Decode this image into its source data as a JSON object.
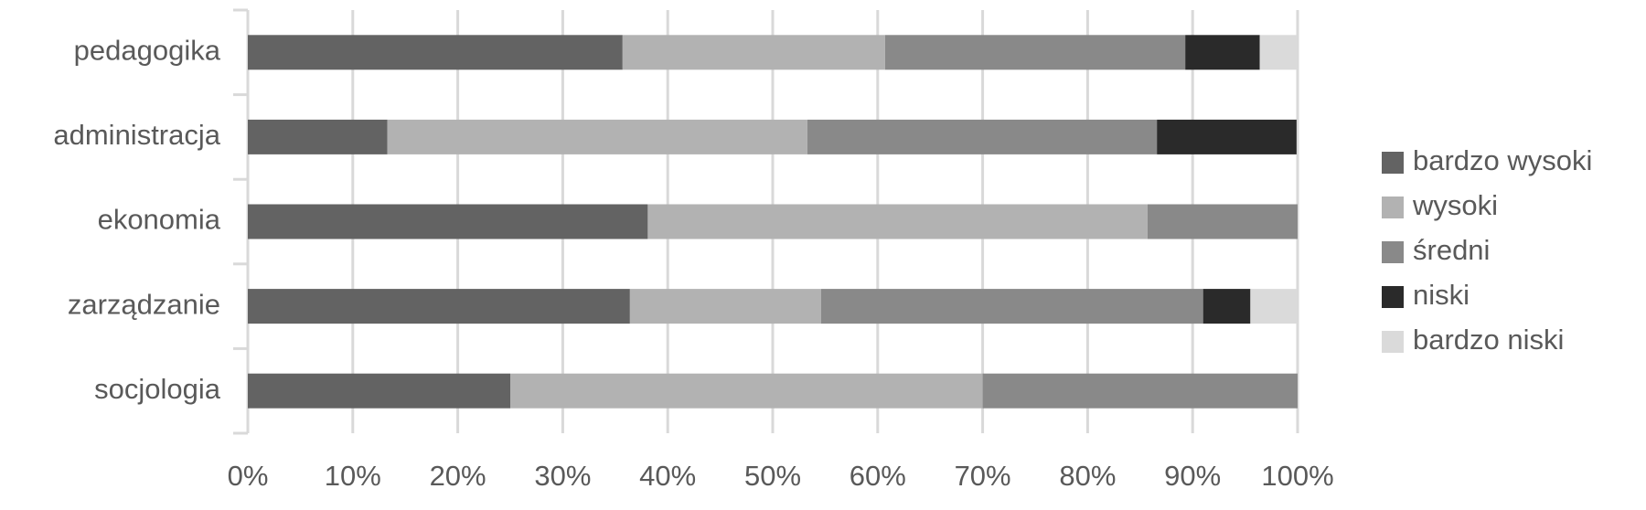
{
  "chart_data": {
    "type": "stacked_bar_horizontal",
    "categories": [
      "pedagogika",
      "administracja",
      "ekonomia",
      "zarządzanie",
      "socjologia"
    ],
    "series": [
      {
        "name": "bardzo wysoki",
        "color": "#636363",
        "values": [
          35.7,
          13.3,
          38.1,
          36.4,
          25.0
        ]
      },
      {
        "name": "wysoki",
        "color": "#b2b2b2",
        "values": [
          25.0,
          40.0,
          47.6,
          18.2,
          45.0
        ]
      },
      {
        "name": "średni",
        "color": "#898989",
        "values": [
          28.6,
          33.3,
          14.3,
          36.4,
          30.0
        ]
      },
      {
        "name": "niski",
        "color": "#2a2a2a",
        "values": [
          7.1,
          13.3,
          0,
          4.5,
          0
        ]
      },
      {
        "name": "bardzo niski",
        "color": "#dadada",
        "values": [
          3.6,
          0,
          0,
          4.5,
          0
        ]
      }
    ],
    "xlim": [
      0,
      100
    ],
    "xticks": [
      {
        "value": 0,
        "label": "0%"
      },
      {
        "value": 10,
        "label": "10%"
      },
      {
        "value": 20,
        "label": "20%"
      },
      {
        "value": 30,
        "label": "30%"
      },
      {
        "value": 40,
        "label": "40%"
      },
      {
        "value": 50,
        "label": "50%"
      },
      {
        "value": 60,
        "label": "60%"
      },
      {
        "value": 70,
        "label": "70%"
      },
      {
        "value": 80,
        "label": "80%"
      },
      {
        "value": 90,
        "label": "90%"
      },
      {
        "value": 100,
        "label": "100%"
      }
    ],
    "grid": true,
    "legend": "right"
  }
}
